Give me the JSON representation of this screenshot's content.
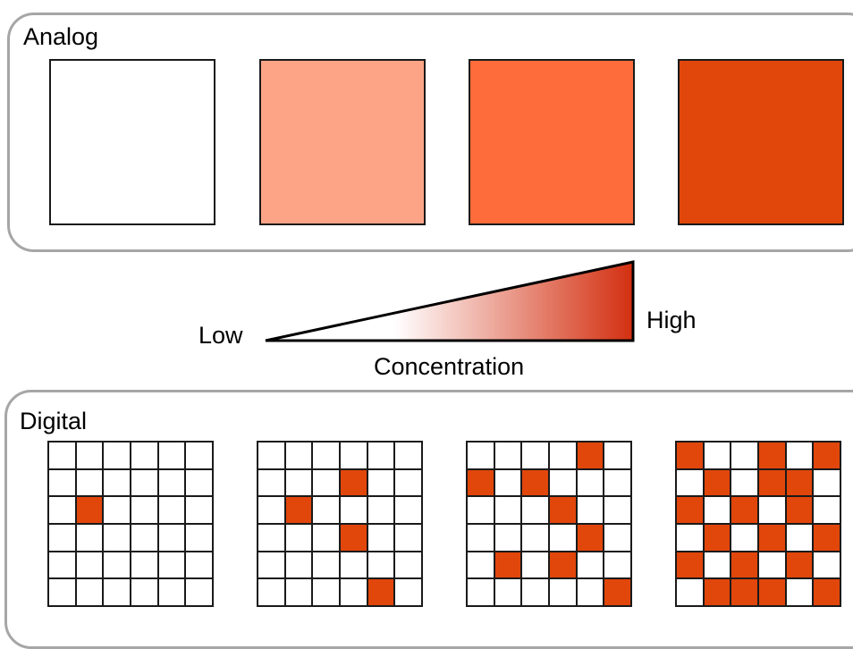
{
  "analog": {
    "title": "Analog",
    "swatches": [
      {
        "name": "swatch-1",
        "color": "#ffffff"
      },
      {
        "name": "swatch-2",
        "color": "#fda487"
      },
      {
        "name": "swatch-3",
        "color": "#fd6c3a"
      },
      {
        "name": "swatch-4",
        "color": "#e1460b"
      }
    ]
  },
  "gradient": {
    "low_label": "Low",
    "high_label": "High",
    "axis_label": "Concentration",
    "start_color": "#ffffff",
    "end_color": "#d32f10"
  },
  "digital": {
    "title": "Digital",
    "on_color": "#e1460b",
    "grids": [
      [
        [
          0,
          0,
          0,
          0,
          0,
          0
        ],
        [
          0,
          0,
          0,
          0,
          0,
          0
        ],
        [
          0,
          1,
          0,
          0,
          0,
          0
        ],
        [
          0,
          0,
          0,
          0,
          0,
          0
        ],
        [
          0,
          0,
          0,
          0,
          0,
          0
        ],
        [
          0,
          0,
          0,
          0,
          0,
          0
        ]
      ],
      [
        [
          0,
          0,
          0,
          0,
          0,
          0
        ],
        [
          0,
          0,
          0,
          1,
          0,
          0
        ],
        [
          0,
          1,
          0,
          0,
          0,
          0
        ],
        [
          0,
          0,
          0,
          1,
          0,
          0
        ],
        [
          0,
          0,
          0,
          0,
          0,
          0
        ],
        [
          0,
          0,
          0,
          0,
          1,
          0
        ]
      ],
      [
        [
          0,
          0,
          0,
          0,
          1,
          0
        ],
        [
          1,
          0,
          1,
          0,
          0,
          0
        ],
        [
          0,
          0,
          0,
          1,
          0,
          0
        ],
        [
          0,
          0,
          0,
          0,
          1,
          0
        ],
        [
          0,
          1,
          0,
          1,
          0,
          0
        ],
        [
          0,
          0,
          0,
          0,
          0,
          1
        ]
      ],
      [
        [
          1,
          0,
          0,
          1,
          0,
          1
        ],
        [
          0,
          1,
          0,
          1,
          1,
          0
        ],
        [
          1,
          0,
          1,
          0,
          1,
          0
        ],
        [
          0,
          1,
          0,
          1,
          0,
          1
        ],
        [
          1,
          0,
          1,
          0,
          1,
          0
        ],
        [
          0,
          1,
          1,
          1,
          0,
          1
        ]
      ]
    ]
  }
}
